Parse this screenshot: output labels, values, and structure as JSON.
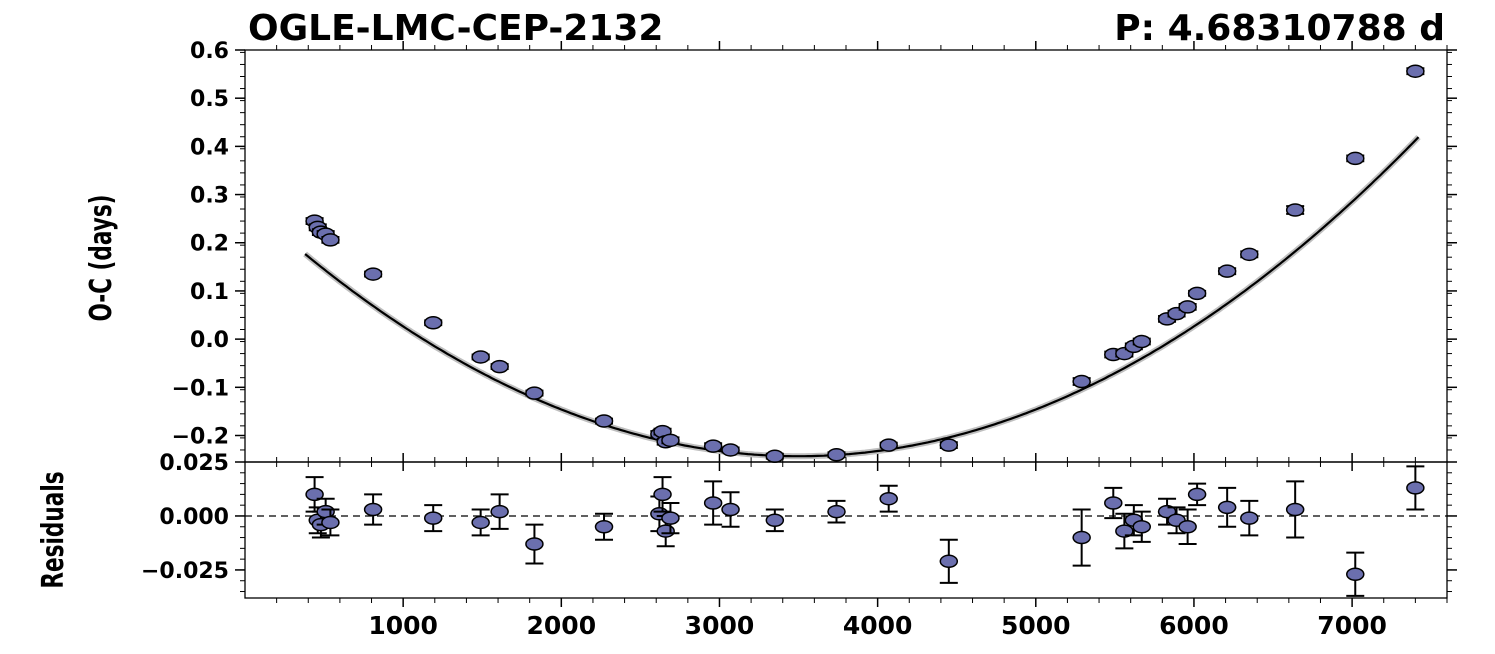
{
  "chart_data": [
    {
      "type": "scatter",
      "panel": "main",
      "title_left": "OGLE-LMC-CEP-2132",
      "title_right": "P: 4.68310788 d",
      "xlabel": "",
      "ylabel": "O-C (days)",
      "xlim": [
        0,
        7600
      ],
      "ylim": [
        -0.255,
        0.6
      ],
      "y_ticks": [
        "0.6",
        "0.5",
        "0.4",
        "0.3",
        "0.2",
        "0.1",
        "0.0",
        "−0.1",
        "−0.2"
      ],
      "y_tick_values": [
        0.6,
        0.5,
        0.4,
        0.3,
        0.2,
        0.1,
        0.0,
        -0.1,
        -0.2
      ],
      "fit": {
        "type": "quadratic",
        "vertex_x": 3500,
        "vertex_y": -0.243,
        "a": 4.31e-08
      },
      "marker_color": "#6b6fae",
      "points": [
        {
          "x": 440,
          "y": 0.245,
          "err": 0.006
        },
        {
          "x": 460,
          "y": 0.232,
          "err": 0.006
        },
        {
          "x": 480,
          "y": 0.222,
          "err": 0.006
        },
        {
          "x": 510,
          "y": 0.218,
          "err": 0.006
        },
        {
          "x": 540,
          "y": 0.206,
          "err": 0.006
        },
        {
          "x": 810,
          "y": 0.135,
          "err": 0.005
        },
        {
          "x": 1190,
          "y": 0.034,
          "err": 0.005
        },
        {
          "x": 1490,
          "y": -0.037,
          "err": 0.005
        },
        {
          "x": 1610,
          "y": -0.057,
          "err": 0.005
        },
        {
          "x": 1830,
          "y": -0.112,
          "err": 0.005
        },
        {
          "x": 2270,
          "y": -0.17,
          "err": 0.005
        },
        {
          "x": 2620,
          "y": -0.197,
          "err": 0.006
        },
        {
          "x": 2640,
          "y": -0.192,
          "err": 0.006
        },
        {
          "x": 2660,
          "y": -0.213,
          "err": 0.006
        },
        {
          "x": 2690,
          "y": -0.21,
          "err": 0.006
        },
        {
          "x": 2960,
          "y": -0.222,
          "err": 0.006
        },
        {
          "x": 3070,
          "y": -0.23,
          "err": 0.005
        },
        {
          "x": 3350,
          "y": -0.243,
          "err": 0.005
        },
        {
          "x": 3740,
          "y": -0.24,
          "err": 0.005
        },
        {
          "x": 4070,
          "y": -0.22,
          "err": 0.005
        },
        {
          "x": 4450,
          "y": -0.22,
          "err": 0.006
        },
        {
          "x": 5290,
          "y": -0.088,
          "err": 0.007
        },
        {
          "x": 5490,
          "y": -0.032,
          "err": 0.006
        },
        {
          "x": 5560,
          "y": -0.03,
          "err": 0.006
        },
        {
          "x": 5620,
          "y": -0.015,
          "err": 0.006
        },
        {
          "x": 5670,
          "y": -0.005,
          "err": 0.006
        },
        {
          "x": 5830,
          "y": 0.042,
          "err": 0.006
        },
        {
          "x": 5890,
          "y": 0.053,
          "err": 0.006
        },
        {
          "x": 5960,
          "y": 0.067,
          "err": 0.006
        },
        {
          "x": 6020,
          "y": 0.095,
          "err": 0.005
        },
        {
          "x": 6210,
          "y": 0.141,
          "err": 0.006
        },
        {
          "x": 6350,
          "y": 0.176,
          "err": 0.006
        },
        {
          "x": 6640,
          "y": 0.268,
          "err": 0.008
        },
        {
          "x": 7020,
          "y": 0.375,
          "err": 0.006
        },
        {
          "x": 7400,
          "y": 0.556,
          "err": 0.006
        }
      ]
    },
    {
      "type": "scatter",
      "panel": "residuals",
      "xlabel": "",
      "ylabel": "Residuals",
      "xlim": [
        0,
        7600
      ],
      "ylim": [
        -0.038,
        0.025
      ],
      "x_ticks": [
        "1000",
        "2000",
        "3000",
        "4000",
        "5000",
        "6000",
        "7000"
      ],
      "x_tick_values": [
        1000,
        2000,
        3000,
        4000,
        5000,
        6000,
        7000
      ],
      "y_ticks": [
        "0.025",
        "0.000",
        "−0.025"
      ],
      "y_tick_values": [
        0.025,
        0.0,
        -0.025
      ],
      "zero_line": "dashed",
      "marker_color": "#6b6fae",
      "points": [
        {
          "x": 440,
          "y": 0.01,
          "err": 0.008
        },
        {
          "x": 460,
          "y": -0.002,
          "err": 0.006
        },
        {
          "x": 480,
          "y": -0.004,
          "err": 0.006
        },
        {
          "x": 510,
          "y": 0.002,
          "err": 0.006
        },
        {
          "x": 540,
          "y": -0.003,
          "err": 0.006
        },
        {
          "x": 810,
          "y": 0.003,
          "err": 0.007
        },
        {
          "x": 1190,
          "y": -0.001,
          "err": 0.006
        },
        {
          "x": 1490,
          "y": -0.003,
          "err": 0.006
        },
        {
          "x": 1610,
          "y": 0.002,
          "err": 0.008
        },
        {
          "x": 1830,
          "y": -0.013,
          "err": 0.009
        },
        {
          "x": 2270,
          "y": -0.005,
          "err": 0.006
        },
        {
          "x": 2620,
          "y": 0.001,
          "err": 0.008
        },
        {
          "x": 2640,
          "y": 0.01,
          "err": 0.008
        },
        {
          "x": 2660,
          "y": -0.007,
          "err": 0.007
        },
        {
          "x": 2690,
          "y": -0.001,
          "err": 0.007
        },
        {
          "x": 2960,
          "y": 0.006,
          "err": 0.01
        },
        {
          "x": 3070,
          "y": 0.003,
          "err": 0.008
        },
        {
          "x": 3350,
          "y": -0.002,
          "err": 0.005
        },
        {
          "x": 3740,
          "y": 0.002,
          "err": 0.005
        },
        {
          "x": 4070,
          "y": 0.008,
          "err": 0.006
        },
        {
          "x": 4450,
          "y": -0.021,
          "err": 0.01
        },
        {
          "x": 5290,
          "y": -0.01,
          "err": 0.013
        },
        {
          "x": 5490,
          "y": 0.006,
          "err": 0.007
        },
        {
          "x": 5560,
          "y": -0.007,
          "err": 0.008
        },
        {
          "x": 5620,
          "y": -0.002,
          "err": 0.007
        },
        {
          "x": 5670,
          "y": -0.005,
          "err": 0.007
        },
        {
          "x": 5830,
          "y": 0.002,
          "err": 0.006
        },
        {
          "x": 5890,
          "y": -0.002,
          "err": 0.006
        },
        {
          "x": 5960,
          "y": -0.005,
          "err": 0.008
        },
        {
          "x": 6020,
          "y": 0.01,
          "err": 0.005
        },
        {
          "x": 6210,
          "y": 0.004,
          "err": 0.009
        },
        {
          "x": 6350,
          "y": -0.001,
          "err": 0.008
        },
        {
          "x": 6640,
          "y": 0.003,
          "err": 0.013
        },
        {
          "x": 7020,
          "y": -0.027,
          "err": 0.01
        },
        {
          "x": 7400,
          "y": 0.013,
          "err": 0.01
        }
      ]
    }
  ]
}
